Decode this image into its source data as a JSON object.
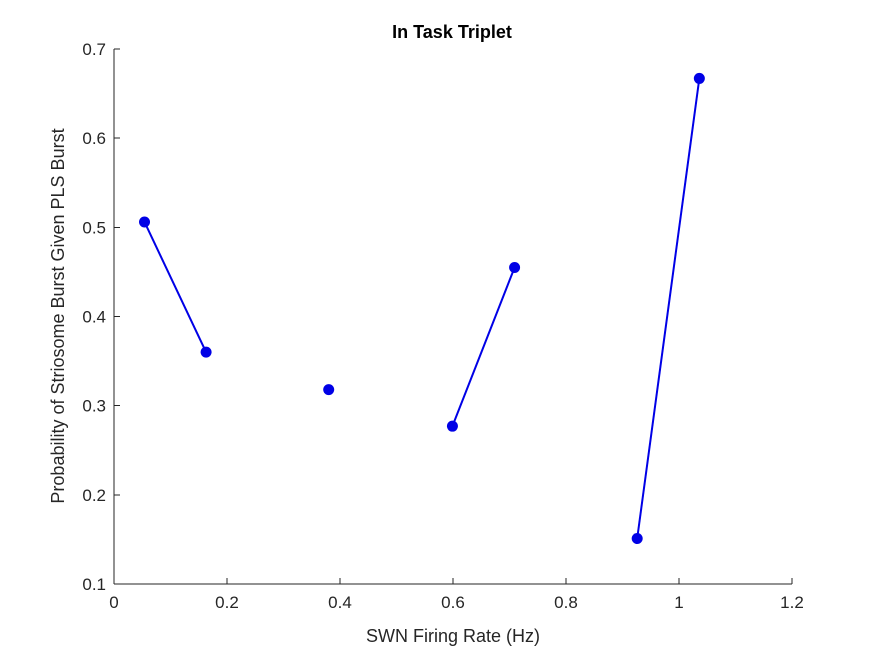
{
  "chart_data": {
    "type": "line",
    "title": "In Task Triplet",
    "xlabel": "SWN Firing Rate (Hz)",
    "ylabel": "Probability of Striosome Burst Given PLS Burst",
    "xlim": [
      0,
      1.2
    ],
    "ylim": [
      0.1,
      0.7
    ],
    "xticks": [
      "0",
      "0.2",
      "0.4",
      "0.6",
      "0.8",
      "1",
      "1.2"
    ],
    "yticks": [
      "0.1",
      "0.2",
      "0.3",
      "0.4",
      "0.5",
      "0.6",
      "0.7"
    ],
    "grid": false,
    "color": "#0000E6",
    "segments": [
      {
        "x": [
          0.054,
          0.163
        ],
        "y": [
          0.506,
          0.36
        ]
      },
      {
        "x": [
          0.38
        ],
        "y": [
          0.318
        ]
      },
      {
        "x": [
          0.599,
          0.709
        ],
        "y": [
          0.277,
          0.455
        ]
      },
      {
        "x": [
          0.926,
          1.036
        ],
        "y": [
          0.151,
          0.667
        ]
      }
    ]
  }
}
